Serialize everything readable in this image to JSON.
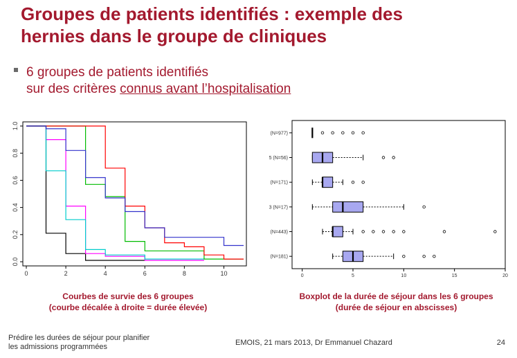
{
  "slide": {
    "title_line1": "Groupes de patients identifiés : exemple des",
    "title_line2": "hernies dans le groupe de cliniques",
    "bullet_line1": "6 groupes de patients identifiés",
    "bullet_line2_prefix": "sur des critères ",
    "bullet_line2_underlined": "connus avant l’hospitalisation",
    "accent_color": "#a3192e"
  },
  "captions": {
    "left_line1": "Courbes de survie des 6 groupes",
    "left_line2": "(courbe décalée à droite = durée élevée)",
    "right_line1": "Boxplot de la durée de séjour dans les 6 groupes",
    "right_line2": "(durée de séjour en abscisses)"
  },
  "footer": {
    "left_line1": "Prédire les durées de séjour pour planifier",
    "left_line2": "les admissions programmées",
    "center": "EMOIS, 21 mars 2013, Dr Emmanuel Chazard",
    "page": "24"
  },
  "chart_data": [
    {
      "type": "line",
      "xlim": [
        0,
        11
      ],
      "ylim": [
        0,
        1
      ],
      "x_ticks": [
        "0",
        "2",
        "4",
        "6",
        "8",
        "10"
      ],
      "y_ticks": [
        "0.0",
        "0.2",
        "0.4",
        "0.6",
        "0.8",
        "1.0"
      ],
      "series": [
        {
          "color": "#000000",
          "points": [
            [
              0,
              1
            ],
            [
              1,
              1
            ],
            [
              1,
              0.21
            ],
            [
              2,
              0.21
            ],
            [
              2,
              0.06
            ],
            [
              3,
              0.06
            ],
            [
              3,
              0.01
            ],
            [
              6,
              0.01
            ]
          ]
        },
        {
          "color": "#ff00ff",
          "points": [
            [
              0,
              1
            ],
            [
              1,
              1
            ],
            [
              1,
              0.9
            ],
            [
              2,
              0.9
            ],
            [
              2,
              0.41
            ],
            [
              3,
              0.41
            ],
            [
              3,
              0.06
            ],
            [
              4,
              0.06
            ],
            [
              4,
              0.04
            ],
            [
              6,
              0.04
            ],
            [
              6,
              0.01
            ],
            [
              9,
              0.01
            ]
          ]
        },
        {
          "color": "#00cccc",
          "points": [
            [
              0,
              1
            ],
            [
              1,
              1
            ],
            [
              1,
              0.67
            ],
            [
              2,
              0.67
            ],
            [
              2,
              0.31
            ],
            [
              3,
              0.31
            ],
            [
              3,
              0.09
            ],
            [
              4,
              0.09
            ],
            [
              4,
              0.05
            ],
            [
              6,
              0.05
            ],
            [
              6,
              0.02
            ],
            [
              9,
              0.02
            ]
          ]
        },
        {
          "color": "#00bb00",
          "points": [
            [
              0,
              1
            ],
            [
              3,
              1
            ],
            [
              3,
              0.57
            ],
            [
              4,
              0.57
            ],
            [
              4,
              0.48
            ],
            [
              5,
              0.48
            ],
            [
              5,
              0.15
            ],
            [
              6,
              0.15
            ],
            [
              6,
              0.08
            ],
            [
              9,
              0.08
            ],
            [
              9,
              0.02
            ],
            [
              11,
              0.02
            ]
          ]
        },
        {
          "color": "#ff0000",
          "points": [
            [
              0,
              1
            ],
            [
              4,
              1
            ],
            [
              4,
              0.69
            ],
            [
              5,
              0.69
            ],
            [
              5,
              0.41
            ],
            [
              6,
              0.41
            ],
            [
              6,
              0.25
            ],
            [
              7,
              0.25
            ],
            [
              7,
              0.14
            ],
            [
              8,
              0.14
            ],
            [
              8,
              0.11
            ],
            [
              9,
              0.11
            ],
            [
              9,
              0.05
            ],
            [
              10,
              0.05
            ],
            [
              10,
              0.02
            ],
            [
              11,
              0.02
            ]
          ]
        },
        {
          "color": "#3333cc",
          "points": [
            [
              0,
              1
            ],
            [
              1,
              1
            ],
            [
              1,
              0.98
            ],
            [
              2,
              0.98
            ],
            [
              2,
              0.82
            ],
            [
              3,
              0.82
            ],
            [
              3,
              0.62
            ],
            [
              4,
              0.62
            ],
            [
              4,
              0.47
            ],
            [
              5,
              0.47
            ],
            [
              5,
              0.37
            ],
            [
              6,
              0.37
            ],
            [
              6,
              0.25
            ],
            [
              7,
              0.25
            ],
            [
              7,
              0.18
            ],
            [
              10,
              0.18
            ],
            [
              10,
              0.12
            ],
            [
              11,
              0.12
            ]
          ]
        }
      ]
    },
    {
      "type": "boxplot",
      "xlim": [
        -1,
        20
      ],
      "x_ticks": [
        "0",
        "5",
        "10",
        "15",
        "20"
      ],
      "box_color": "#a8a8f0",
      "categories": [
        "(N=977)",
        "5 (N=56)",
        "(N=171)",
        "3 (N=17)",
        "(N=443)",
        "(N=181)"
      ],
      "boxes": [
        {
          "min": 1,
          "q1": 1,
          "median": 1,
          "q3": 1,
          "max": 1,
          "outliers": [
            2,
            3,
            4,
            5,
            6
          ]
        },
        {
          "min": 1,
          "q1": 1,
          "median": 2,
          "q3": 3,
          "max": 6,
          "outliers": [
            8,
            9
          ]
        },
        {
          "min": 1,
          "q1": 2,
          "median": 2,
          "q3": 3,
          "max": 4,
          "outliers": [
            5,
            6
          ]
        },
        {
          "min": 1,
          "q1": 3,
          "median": 4,
          "q3": 6,
          "max": 10,
          "outliers": [
            12
          ]
        },
        {
          "min": 2,
          "q1": 3,
          "median": 3,
          "q3": 4,
          "max": 5,
          "outliers": [
            6,
            7,
            8,
            9,
            10,
            14,
            19
          ]
        },
        {
          "min": 3,
          "q1": 4,
          "median": 5,
          "q3": 6,
          "max": 9,
          "outliers": [
            10,
            12,
            13
          ]
        }
      ]
    }
  ]
}
